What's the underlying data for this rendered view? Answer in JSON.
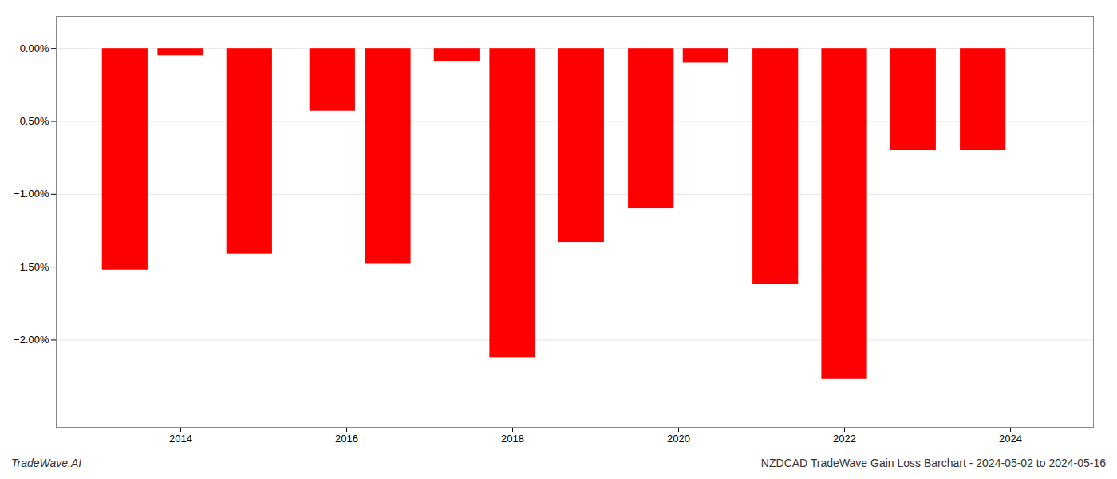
{
  "chart_data": {
    "type": "bar",
    "title": "NZDCAD TradeWave Gain Loss Barchart - 2024-05-02 to 2024-05-16",
    "annotations": [
      "TradeWave.AI"
    ],
    "x": [
      2013.33,
      2014.0,
      2014.83,
      2015.83,
      2016.5,
      2017.33,
      2018.0,
      2018.83,
      2019.67,
      2020.33,
      2021.17,
      2022.0,
      2022.83,
      2023.67
    ],
    "values": [
      -1.52,
      -0.05,
      -1.41,
      -0.43,
      -1.48,
      -0.09,
      -2.12,
      -1.33,
      -1.1,
      -0.1,
      -1.62,
      -2.27,
      -0.7,
      -0.7
    ],
    "color": "#ff0000",
    "xlim": [
      2012.5,
      2025.0
    ],
    "xticks": [
      2014,
      2016,
      2018,
      2020,
      2022,
      2024
    ],
    "ylim": [
      -2.6,
      0.22
    ],
    "yticks": [
      {
        "value": 0.0,
        "label": "0.00%"
      },
      {
        "value": -0.5,
        "label": "−0.50%"
      },
      {
        "value": -1.0,
        "label": "−1.00%"
      },
      {
        "value": -1.5,
        "label": "−1.50%"
      },
      {
        "value": -2.0,
        "label": "−2.00%"
      }
    ],
    "grid": true
  }
}
